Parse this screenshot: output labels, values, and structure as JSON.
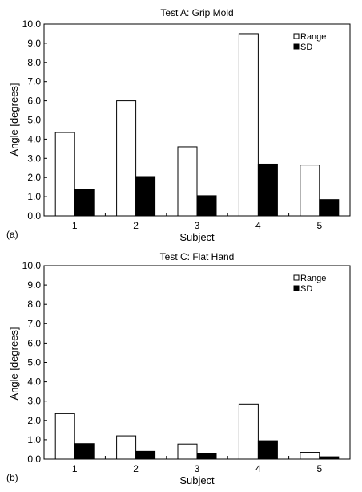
{
  "chart_data": [
    {
      "type": "bar",
      "panel_label": "(a)",
      "title": "Test A: Grip Mold",
      "xlabel": "Subject",
      "ylabel": "Angle [degrees]",
      "categories": [
        "1",
        "2",
        "3",
        "4",
        "5"
      ],
      "ylim": [
        0,
        10
      ],
      "yticks": [
        "0.0",
        "1.0",
        "2.0",
        "3.0",
        "4.0",
        "5.0",
        "6.0",
        "7.0",
        "8.0",
        "9.0",
        "10.0"
      ],
      "grid": false,
      "legend_position": "top-right",
      "series": [
        {
          "name": "Range",
          "values": [
            4.35,
            6.0,
            3.6,
            9.5,
            2.65
          ],
          "color": "#ffffff"
        },
        {
          "name": "SD",
          "values": [
            1.4,
            2.05,
            1.05,
            2.7,
            0.85
          ],
          "color": "#000000"
        }
      ]
    },
    {
      "type": "bar",
      "panel_label": "(b)",
      "title": "Test C: Flat Hand",
      "xlabel": "Subject",
      "ylabel": "Angle [degrees]",
      "categories": [
        "1",
        "2",
        "3",
        "4",
        "5"
      ],
      "ylim": [
        0,
        10
      ],
      "yticks": [
        "0.0",
        "1.0",
        "2.0",
        "3.0",
        "4.0",
        "5.0",
        "6.0",
        "7.0",
        "8.0",
        "9.0",
        "10.0"
      ],
      "grid": false,
      "legend_position": "top-right",
      "series": [
        {
          "name": "Range",
          "values": [
            2.35,
            1.2,
            0.78,
            2.85,
            0.35
          ],
          "color": "#ffffff"
        },
        {
          "name": "SD",
          "values": [
            0.8,
            0.4,
            0.28,
            0.95,
            0.12
          ],
          "color": "#000000"
        }
      ]
    }
  ]
}
